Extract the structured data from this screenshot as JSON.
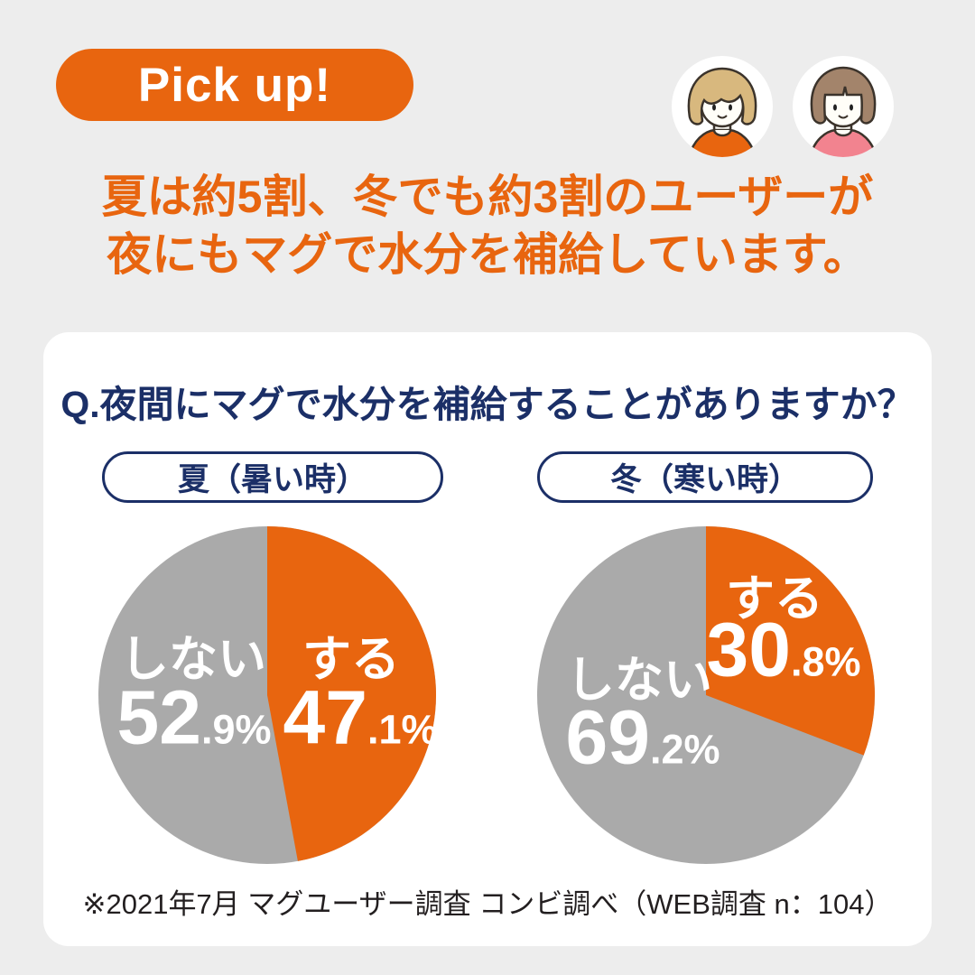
{
  "colors": {
    "background": "#EDEDED",
    "card": "#FFFFFF",
    "accent_orange": "#E8650F",
    "pie_gray": "#AAAAAA",
    "navy": "#1B2F67",
    "footnote_text": "#231F20"
  },
  "badge": {
    "label": "Pick up!"
  },
  "avatars": {
    "left": "girl-avatar-orange-shirt",
    "right": "girl-avatar-pink-shirt"
  },
  "headline": {
    "line1": "夏は約5割、冬でも約3割のユーザーが",
    "line2": "夜にもマグで水分を補給しています。"
  },
  "card": {
    "question": "Q.夜間にマグで水分を補給することがありますか？",
    "footnote": "※2021年7月 マグユーザー調査 コンビ調べ（WEB調査 n：104）"
  },
  "chart_data": [
    {
      "type": "pie",
      "title": "夏（暑い時）",
      "start_angle": "12-oclock",
      "direction": "clockwise",
      "slices": [
        {
          "label": "する",
          "value": 47.1,
          "int": "47",
          "frac": ".1%",
          "color": "#E8650F"
        },
        {
          "label": "しない",
          "value": 52.9,
          "int": "52",
          "frac": ".9%",
          "color": "#AAAAAA"
        }
      ]
    },
    {
      "type": "pie",
      "title": "冬（寒い時）",
      "start_angle": "12-oclock",
      "direction": "clockwise",
      "slices": [
        {
          "label": "する",
          "value": 30.8,
          "int": "30",
          "frac": ".8%",
          "color": "#E8650F"
        },
        {
          "label": "しない",
          "value": 69.2,
          "int": "69",
          "frac": ".2%",
          "color": "#AAAAAA"
        }
      ]
    }
  ]
}
